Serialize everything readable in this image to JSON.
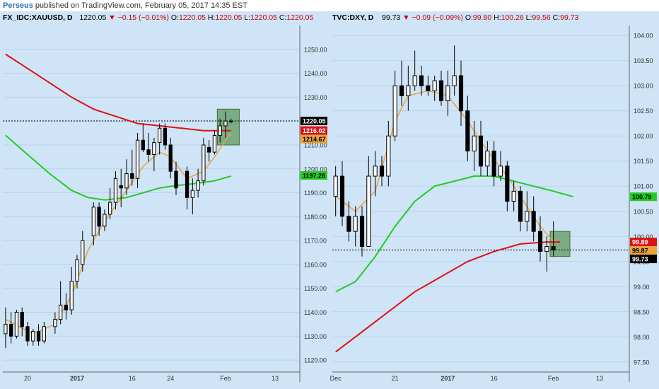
{
  "header": {
    "author": "Perseus",
    "published_text": "published on TradingView.com, February 05, 2017 14:35 EST"
  },
  "colors": {
    "background": "#cfe4f7",
    "ema_fast": "#e8a33d",
    "ma_green": "#22cc22",
    "ma_red": "#dd1111",
    "box": "#5f9a5c",
    "last_price": "#000000"
  },
  "chart_data": [
    {
      "type": "candlestick",
      "symbol": "FX_IDC:XAUUSD, D",
      "ohlc_text": {
        "last": "1220.05",
        "change": "▼ −0.15 (−0.01%)",
        "o_label": "O:",
        "o": "1220.05",
        "h_label": "H:",
        "h": "1220.05",
        "l_label": "L:",
        "l": "1220.05",
        "c_label": "C:",
        "c": "1220.05"
      },
      "ylim": [
        1115,
        1260
      ],
      "y_ticks": [
        1120,
        1130,
        1140,
        1150,
        1160,
        1170,
        1180,
        1190,
        1200,
        1210,
        1220,
        1230,
        1240,
        1250
      ],
      "y_tick_labels": [
        "1120.00",
        "1130.00",
        "1140.00",
        "1150.00",
        "1160.00",
        "1170.00",
        "1180.00",
        "1190.00",
        "1200.00",
        "1210.00",
        "1220.00",
        "1230.00",
        "1240.00",
        "1250.00"
      ],
      "x_ticks": [
        {
          "i": 4,
          "label": "20"
        },
        {
          "i": 13,
          "label": "2017",
          "bold": true
        },
        {
          "i": 23,
          "label": "16"
        },
        {
          "i": 30,
          "label": "24"
        },
        {
          "i": 40,
          "label": "Feb"
        },
        {
          "i": 49,
          "label": "13"
        }
      ],
      "bars": 54,
      "candles": [
        {
          "i": 0,
          "o": 1131,
          "h": 1142,
          "l": 1125,
          "c": 1135
        },
        {
          "i": 1,
          "o": 1135,
          "h": 1140,
          "l": 1127,
          "c": 1130
        },
        {
          "i": 2,
          "o": 1130,
          "h": 1141,
          "l": 1129,
          "c": 1140
        },
        {
          "i": 3,
          "o": 1140,
          "h": 1142,
          "l": 1130,
          "c": 1134
        },
        {
          "i": 4,
          "o": 1134,
          "h": 1136,
          "l": 1126,
          "c": 1128
        },
        {
          "i": 5,
          "o": 1128,
          "h": 1133,
          "l": 1126,
          "c": 1132
        },
        {
          "i": 6,
          "o": 1132,
          "h": 1135,
          "l": 1126,
          "c": 1128
        },
        {
          "i": 7,
          "o": 1128,
          "h": 1136,
          "l": 1127,
          "c": 1134
        },
        {
          "i": 9,
          "o": 1134,
          "h": 1140,
          "l": 1131,
          "c": 1137
        },
        {
          "i": 10,
          "o": 1137,
          "h": 1153,
          "l": 1135,
          "c": 1143
        },
        {
          "i": 11,
          "o": 1143,
          "h": 1148,
          "l": 1137,
          "c": 1141
        },
        {
          "i": 12,
          "o": 1141,
          "h": 1159,
          "l": 1139,
          "c": 1153
        },
        {
          "i": 13,
          "o": 1153,
          "h": 1164,
          "l": 1150,
          "c": 1162
        },
        {
          "i": 14,
          "o": 1160,
          "h": 1174,
          "l": 1157,
          "c": 1170
        },
        {
          "i": 16,
          "o": 1172,
          "h": 1186,
          "l": 1168,
          "c": 1184
        },
        {
          "i": 17,
          "o": 1184,
          "h": 1186,
          "l": 1172,
          "c": 1176
        },
        {
          "i": 18,
          "o": 1176,
          "h": 1183,
          "l": 1174,
          "c": 1181
        },
        {
          "i": 19,
          "o": 1181,
          "h": 1192,
          "l": 1179,
          "c": 1186
        },
        {
          "i": 20,
          "o": 1186,
          "h": 1199,
          "l": 1183,
          "c": 1196
        },
        {
          "i": 21,
          "o": 1193,
          "h": 1200,
          "l": 1184,
          "c": 1192
        },
        {
          "i": 22,
          "o": 1192,
          "h": 1204,
          "l": 1189,
          "c": 1198
        },
        {
          "i": 23,
          "o": 1198,
          "h": 1208,
          "l": 1193,
          "c": 1196
        },
        {
          "i": 24,
          "o": 1196,
          "h": 1215,
          "l": 1192,
          "c": 1212
        },
        {
          "i": 25,
          "o": 1212,
          "h": 1219,
          "l": 1207,
          "c": 1208
        },
        {
          "i": 26,
          "o": 1208,
          "h": 1215,
          "l": 1203,
          "c": 1206
        },
        {
          "i": 27,
          "o": 1206,
          "h": 1213,
          "l": 1199,
          "c": 1211
        },
        {
          "i": 28,
          "o": 1211,
          "h": 1219,
          "l": 1206,
          "c": 1217
        },
        {
          "i": 29,
          "o": 1217,
          "h": 1219,
          "l": 1208,
          "c": 1210
        },
        {
          "i": 30,
          "o": 1210,
          "h": 1213,
          "l": 1196,
          "c": 1199
        },
        {
          "i": 31,
          "o": 1199,
          "h": 1203,
          "l": 1189,
          "c": 1192
        },
        {
          "i": 33,
          "o": 1199,
          "h": 1201,
          "l": 1183,
          "c": 1188
        },
        {
          "i": 34,
          "o": 1188,
          "h": 1196,
          "l": 1181,
          "c": 1191
        },
        {
          "i": 35,
          "o": 1191,
          "h": 1200,
          "l": 1188,
          "c": 1195
        },
        {
          "i": 36,
          "o": 1195,
          "h": 1213,
          "l": 1193,
          "c": 1210
        },
        {
          "i": 37,
          "o": 1209,
          "h": 1212,
          "l": 1203,
          "c": 1207
        },
        {
          "i": 38,
          "o": 1207,
          "h": 1216,
          "l": 1206,
          "c": 1214
        },
        {
          "i": 39,
          "o": 1214,
          "h": 1221,
          "l": 1211,
          "c": 1218
        },
        {
          "i": 40,
          "o": 1218,
          "h": 1224,
          "l": 1213,
          "c": 1220
        },
        {
          "i": 41,
          "o": 1220,
          "h": 1221,
          "l": 1219,
          "c": 1220
        }
      ],
      "series": [
        {
          "name": "EMA fast",
          "color": "#e8a33d",
          "points": [
            [
              0,
              1137
            ],
            [
              5,
              1131
            ],
            [
              9,
              1135
            ],
            [
              12,
              1147
            ],
            [
              15,
              1166
            ],
            [
              18,
              1178
            ],
            [
              22,
              1191
            ],
            [
              25,
              1201
            ],
            [
              28,
              1207
            ],
            [
              30,
              1205
            ],
            [
              33,
              1196
            ],
            [
              36,
              1199
            ],
            [
              38,
              1205
            ],
            [
              40,
              1212
            ],
            [
              41,
              1215
            ]
          ]
        },
        {
          "name": "MA 50",
          "color": "#22cc22",
          "points": [
            [
              0,
              1214
            ],
            [
              4,
              1206
            ],
            [
              8,
              1198
            ],
            [
              12,
              1191
            ],
            [
              15,
              1188
            ],
            [
              18,
              1187
            ],
            [
              22,
              1188
            ],
            [
              25,
              1190
            ],
            [
              28,
              1192
            ],
            [
              31,
              1193
            ],
            [
              35,
              1194
            ],
            [
              38,
              1195
            ],
            [
              41,
              1197
            ]
          ]
        },
        {
          "name": "MA 200",
          "color": "#dd1111",
          "points": [
            [
              0,
              1248
            ],
            [
              4,
              1242
            ],
            [
              8,
              1236
            ],
            [
              12,
              1230
            ],
            [
              16,
              1225
            ],
            [
              20,
              1222
            ],
            [
              24,
              1219
            ],
            [
              28,
              1218
            ],
            [
              32,
              1217
            ],
            [
              36,
              1216
            ],
            [
              41,
              1216
            ]
          ]
        }
      ],
      "last_price_line": 1220.05,
      "price_labels": [
        {
          "value": 1220.05,
          "text": "1220.05",
          "bg": "#000000",
          "fg": "#ffffff"
        },
        {
          "value": 1216.02,
          "text": "1216.02",
          "bg": "#dd1111",
          "fg": "#ffffff"
        },
        {
          "value": 1214.67,
          "text": "1214.67",
          "bg": "#e8a33d",
          "fg": "#000000"
        },
        {
          "value": 1197.26,
          "text": "1197.26",
          "bg": "#22cc22",
          "fg": "#000000"
        }
      ],
      "highlight_box": {
        "i0": 39,
        "i1": 43,
        "y0": 1210,
        "y1": 1225
      }
    },
    {
      "type": "candlestick",
      "symbol": "TVC:DXY, D",
      "ohlc_text": {
        "last": "99.73",
        "change": "▼ −0.09 (−0.09%)",
        "o_label": "O:",
        "o": "99.80",
        "h_label": "H:",
        "h": "100.26",
        "l_label": "L:",
        "l": "99.56",
        "c_label": "C:",
        "c": "99.73"
      },
      "ylim": [
        97.3,
        104.2
      ],
      "y_ticks": [
        97.5,
        98.0,
        98.5,
        99.0,
        99.5,
        100.0,
        100.5,
        101.0,
        101.5,
        102.0,
        102.5,
        103.0,
        103.5,
        104.0
      ],
      "y_tick_labels": [
        "97.50",
        "98.00",
        "98.50",
        "99.00",
        "99.50",
        "100.00",
        "100.50",
        "101.00",
        "101.50",
        "102.00",
        "102.50",
        "103.00",
        "103.50",
        "104.00"
      ],
      "x_ticks": [
        {
          "i": 0,
          "label": "Dec"
        },
        {
          "i": 9,
          "label": "21"
        },
        {
          "i": 17,
          "label": "2017",
          "bold": true
        },
        {
          "i": 24,
          "label": "16"
        },
        {
          "i": 33,
          "label": "Feb"
        },
        {
          "i": 40,
          "label": "13"
        }
      ],
      "bars": 45,
      "candles": [
        {
          "i": 0,
          "o": 100.8,
          "h": 101.4,
          "l": 100.4,
          "c": 101.2
        },
        {
          "i": 1,
          "o": 101.2,
          "h": 101.5,
          "l": 100.2,
          "c": 100.4
        },
        {
          "i": 2,
          "o": 100.4,
          "h": 100.7,
          "l": 99.9,
          "c": 100.1
        },
        {
          "i": 3,
          "o": 100.1,
          "h": 100.6,
          "l": 99.8,
          "c": 100.4
        },
        {
          "i": 4,
          "o": 100.4,
          "h": 100.6,
          "l": 99.6,
          "c": 99.8
        },
        {
          "i": 5,
          "o": 99.8,
          "h": 101.6,
          "l": 99.8,
          "c": 101.2
        },
        {
          "i": 6,
          "o": 101.2,
          "h": 101.7,
          "l": 100.8,
          "c": 101.4
        },
        {
          "i": 7,
          "o": 101.4,
          "h": 101.6,
          "l": 101.0,
          "c": 101.2
        },
        {
          "i": 8,
          "o": 101.2,
          "h": 102.3,
          "l": 101.0,
          "c": 102.0
        },
        {
          "i": 9,
          "o": 102.0,
          "h": 103.3,
          "l": 101.9,
          "c": 103.0
        },
        {
          "i": 10,
          "o": 103.0,
          "h": 103.5,
          "l": 102.6,
          "c": 102.8
        },
        {
          "i": 11,
          "o": 102.8,
          "h": 103.4,
          "l": 102.5,
          "c": 103.0
        },
        {
          "i": 12,
          "o": 103.0,
          "h": 103.7,
          "l": 102.9,
          "c": 103.2
        },
        {
          "i": 13,
          "o": 103.2,
          "h": 103.4,
          "l": 102.8,
          "c": 103.0
        },
        {
          "i": 14,
          "o": 103.0,
          "h": 103.2,
          "l": 102.8,
          "c": 102.9
        },
        {
          "i": 15,
          "o": 102.9,
          "h": 103.2,
          "l": 102.7,
          "c": 103.1
        },
        {
          "i": 16,
          "o": 103.1,
          "h": 103.3,
          "l": 102.6,
          "c": 102.7
        },
        {
          "i": 17,
          "o": 102.7,
          "h": 103.3,
          "l": 102.4,
          "c": 103.0
        },
        {
          "i": 18,
          "o": 103.0,
          "h": 103.8,
          "l": 102.8,
          "c": 103.2
        },
        {
          "i": 19,
          "o": 103.2,
          "h": 103.5,
          "l": 102.2,
          "c": 102.5
        },
        {
          "i": 20,
          "o": 102.5,
          "h": 102.8,
          "l": 101.5,
          "c": 101.7
        },
        {
          "i": 21,
          "o": 101.7,
          "h": 102.3,
          "l": 101.3,
          "c": 102.0
        },
        {
          "i": 22,
          "o": 102.0,
          "h": 102.3,
          "l": 101.2,
          "c": 101.4
        },
        {
          "i": 23,
          "o": 101.4,
          "h": 101.9,
          "l": 101.2,
          "c": 101.7
        },
        {
          "i": 24,
          "o": 101.7,
          "h": 101.9,
          "l": 101.0,
          "c": 101.2
        },
        {
          "i": 25,
          "o": 101.2,
          "h": 101.7,
          "l": 101.1,
          "c": 101.4
        },
        {
          "i": 26,
          "o": 101.4,
          "h": 101.5,
          "l": 100.5,
          "c": 100.7
        },
        {
          "i": 27,
          "o": 100.7,
          "h": 101.1,
          "l": 100.5,
          "c": 100.9
        },
        {
          "i": 28,
          "o": 100.9,
          "h": 101.0,
          "l": 100.1,
          "c": 100.3
        },
        {
          "i": 29,
          "o": 100.3,
          "h": 100.9,
          "l": 100.1,
          "c": 100.5
        },
        {
          "i": 30,
          "o": 100.5,
          "h": 100.8,
          "l": 99.9,
          "c": 100.1
        },
        {
          "i": 31,
          "o": 100.1,
          "h": 100.4,
          "l": 99.5,
          "c": 99.7
        },
        {
          "i": 32,
          "o": 99.7,
          "h": 100.0,
          "l": 99.3,
          "c": 99.8
        },
        {
          "i": 33,
          "o": 99.8,
          "h": 100.3,
          "l": 99.6,
          "c": 99.73
        }
      ],
      "series": [
        {
          "name": "EMA fast",
          "color": "#e8a33d",
          "points": [
            [
              0,
              100.8
            ],
            [
              3,
              100.5
            ],
            [
              6,
              100.9
            ],
            [
              9,
              102.3
            ],
            [
              11,
              102.8
            ],
            [
              14,
              102.9
            ],
            [
              17,
              102.8
            ],
            [
              20,
              102.3
            ],
            [
              23,
              101.7
            ],
            [
              26,
              101.2
            ],
            [
              29,
              100.6
            ],
            [
              31,
              100.2
            ],
            [
              33,
              99.9
            ]
          ]
        },
        {
          "name": "MA 50",
          "color": "#22cc22",
          "points": [
            [
              0,
              98.9
            ],
            [
              3,
              99.1
            ],
            [
              6,
              99.6
            ],
            [
              9,
              100.2
            ],
            [
              12,
              100.7
            ],
            [
              15,
              101.0
            ],
            [
              18,
              101.1
            ],
            [
              21,
              101.2
            ],
            [
              24,
              101.2
            ],
            [
              27,
              101.1
            ],
            [
              30,
              101.0
            ],
            [
              33,
              100.9
            ],
            [
              36,
              100.79
            ]
          ]
        },
        {
          "name": "MA 200",
          "color": "#dd1111",
          "points": [
            [
              0,
              97.7
            ],
            [
              4,
              98.1
            ],
            [
              8,
              98.5
            ],
            [
              12,
              98.9
            ],
            [
              16,
              99.2
            ],
            [
              20,
              99.5
            ],
            [
              24,
              99.7
            ],
            [
              28,
              99.85
            ],
            [
              32,
              99.89
            ],
            [
              34,
              99.89
            ]
          ]
        }
      ],
      "last_price_line": 99.73,
      "price_labels": [
        {
          "value": 100.79,
          "text": "100.79",
          "bg": "#22cc22",
          "fg": "#000000"
        },
        {
          "value": 99.89,
          "text": "99.89",
          "bg": "#dd1111",
          "fg": "#ffffff"
        },
        {
          "value": 99.87,
          "text": "99.87",
          "bg": "#e8a33d",
          "fg": "#000000"
        },
        {
          "value": 99.73,
          "text": "99.73",
          "bg": "#000000",
          "fg": "#ffffff"
        }
      ],
      "highlight_box": {
        "i0": 33,
        "i1": 36,
        "y0": 99.6,
        "y1": 100.1
      }
    }
  ]
}
